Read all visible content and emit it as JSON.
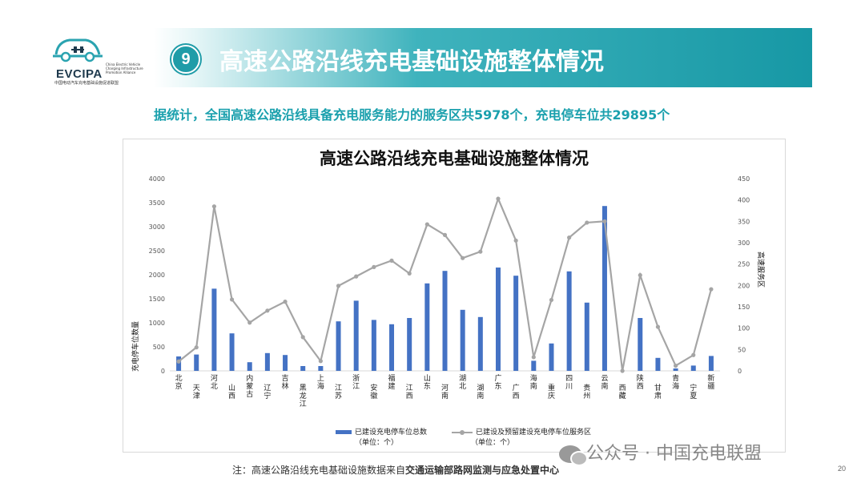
{
  "logo": {
    "name": "EVCIPA",
    "side_text": "China Electric Vehicle Charging Infrastructure Promotion Alliance",
    "subtitle": "中国电动汽车充电基础设施促进联盟"
  },
  "banner": {
    "number": "9",
    "title": "高速公路沿线充电基础设施整体情况"
  },
  "summary": "据统计，全国高速公路沿线具备充电服务能力的服务区共5978个，充电停车位共29895个",
  "colors": {
    "bar": "#4472c4",
    "line": "#a5a5a5",
    "accent": "#1aa0ad"
  },
  "chart_data": {
    "type": "bar+line",
    "title": "高速公路沿线充电基础设施整体情况",
    "ylabel": "充电停车位数量",
    "ylabel_right": "高速服务区",
    "ylim": [
      0,
      4000
    ],
    "ylim_right": [
      0,
      450
    ],
    "yticks": [
      "0",
      "500",
      "1000",
      "1500",
      "2000",
      "2500",
      "3000",
      "3500",
      "4000"
    ],
    "yticks_right": [
      "0",
      "50",
      "100",
      "150",
      "200",
      "250",
      "300",
      "350",
      "400",
      "450"
    ],
    "categories": [
      "北京",
      "天津",
      "河北",
      "山西",
      "内蒙古",
      "辽宁",
      "吉林",
      "黑龙江",
      "上海",
      "江苏",
      "浙江",
      "安徽",
      "福建",
      "江西",
      "山东",
      "河南",
      "湖北",
      "湖南",
      "广东",
      "广西",
      "海南",
      "重庆",
      "四川",
      "贵州",
      "云南",
      "西藏",
      "陕西",
      "甘肃",
      "青海",
      "宁夏",
      "新疆"
    ],
    "series": [
      {
        "name": "已建设充电停车位总数",
        "unit": "（单位：个）",
        "type": "bar",
        "values": [
          300,
          340,
          1710,
          780,
          180,
          370,
          330,
          100,
          100,
          1030,
          1460,
          1060,
          970,
          1100,
          1820,
          2080,
          1270,
          1120,
          2150,
          1980,
          210,
          570,
          2070,
          1420,
          3430,
          0,
          1100,
          270,
          50,
          110,
          310
        ]
      },
      {
        "name": "已建设及预留建设充电停车位服务区",
        "unit": "（单位：个）",
        "type": "line",
        "axis": "right",
        "values": [
          22,
          55,
          385,
          167,
          113,
          141,
          162,
          79,
          23,
          199,
          221,
          243,
          258,
          228,
          343,
          318,
          264,
          279,
          403,
          305,
          32,
          166,
          312,
          347,
          350,
          0,
          224,
          103,
          12,
          37,
          191
        ]
      }
    ]
  },
  "watermark": "公众号 · 中国充电联盟",
  "note": {
    "prefix": "注：高速公路沿线充电基础设施数据来自",
    "bold": "交通运输部路网监测与应急处置中心"
  },
  "page_number": "20"
}
